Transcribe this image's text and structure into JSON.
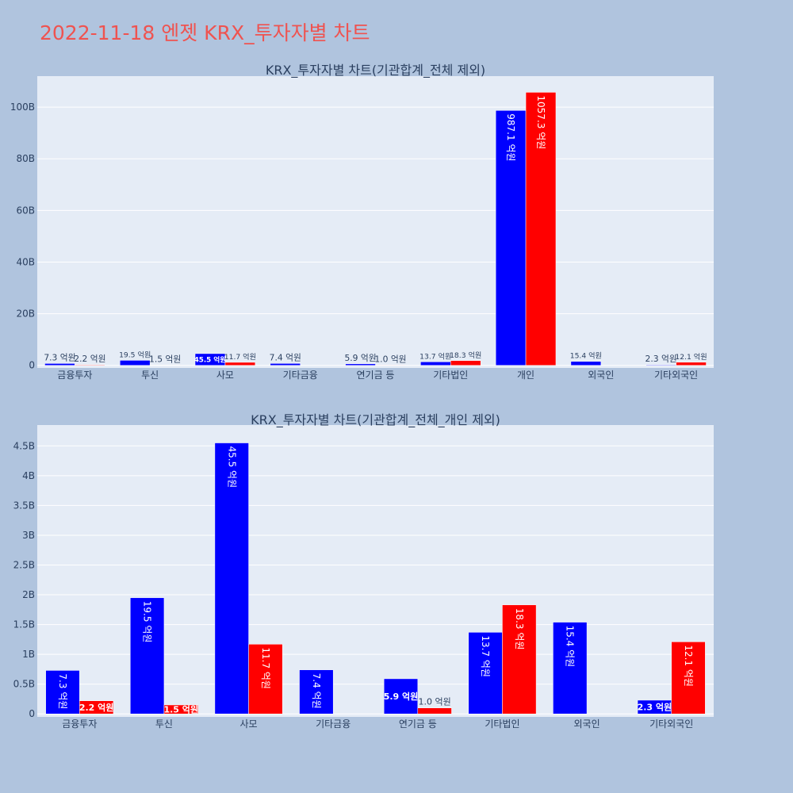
{
  "page": {
    "title": "2022-11-18 엔젯 KRX_투자자별 차트"
  },
  "colors": {
    "background": "#b0c4de",
    "plot_bg": "#e5ecf6",
    "series_a": "#0000ff",
    "series_b": "#ff0000",
    "title": "#ef5350"
  },
  "chart_data": [
    {
      "type": "bar",
      "title": "KRX_투자자별 차트(기관합계_전체 제외)",
      "categories": [
        "금융투자",
        "투신",
        "사모",
        "기타금융",
        "연기금 등",
        "기타법인",
        "개인",
        "외국인",
        "기타외국인"
      ],
      "series": [
        {
          "values": [
            0.73,
            1.95,
            4.55,
            0.74,
            0.59,
            1.37,
            98.71,
            1.54,
            0.23
          ],
          "labels": [
            "7.3 억원",
            "19.5 억원",
            "45.5 억원",
            "7.4 억원",
            "5.9 억원",
            "13.7 억원",
            "987.1 억원",
            "15.4 억원",
            "2.3 억원"
          ]
        },
        {
          "values": [
            0.22,
            0.15,
            1.17,
            null,
            0.1,
            1.83,
            105.73,
            null,
            1.21
          ],
          "labels": [
            "2.2 억원",
            "1.5 억원",
            "11.7 억원",
            "",
            "1.0 억원",
            "18.3 억원",
            "1057.3 억원",
            "",
            "12.1 억원"
          ]
        }
      ],
      "ylim": [
        -1,
        112
      ],
      "yticks": [
        0,
        20,
        40,
        60,
        80,
        100
      ],
      "ytick_labels": [
        "0",
        "20B",
        "40B",
        "60B",
        "80B",
        "100B"
      ],
      "grid": true,
      "legend": "none"
    },
    {
      "type": "bar",
      "title": "KRX_투자자별 차트(기관합계_전체_개인 제외)",
      "categories": [
        "금융투자",
        "투신",
        "사모",
        "기타금융",
        "연기금 등",
        "기타법인",
        "외국인",
        "기타외국인"
      ],
      "series": [
        {
          "values": [
            0.73,
            1.95,
            4.55,
            0.74,
            0.59,
            1.37,
            1.54,
            0.23
          ],
          "labels": [
            "7.3 억원",
            "19.5 억원",
            "45.5 억원",
            "7.4 억원",
            "5.9 억원",
            "13.7 억원",
            "15.4 억원",
            "2.3 억원"
          ]
        },
        {
          "values": [
            0.22,
            0.15,
            1.17,
            null,
            0.1,
            1.83,
            null,
            1.21
          ],
          "labels": [
            "2.2 억원",
            "1.5 억원",
            "11.7 억원",
            "",
            "1.0 억원",
            "18.3 억원",
            "",
            "12.1 억원"
          ]
        }
      ],
      "ylim": [
        -0.05,
        4.85
      ],
      "yticks": [
        0,
        0.5,
        1,
        1.5,
        2,
        2.5,
        3,
        3.5,
        4,
        4.5
      ],
      "ytick_labels": [
        "0",
        "0.5B",
        "1B",
        "1.5B",
        "2B",
        "2.5B",
        "3B",
        "3.5B",
        "4B",
        "4.5B"
      ],
      "grid": true,
      "legend": "none"
    }
  ]
}
